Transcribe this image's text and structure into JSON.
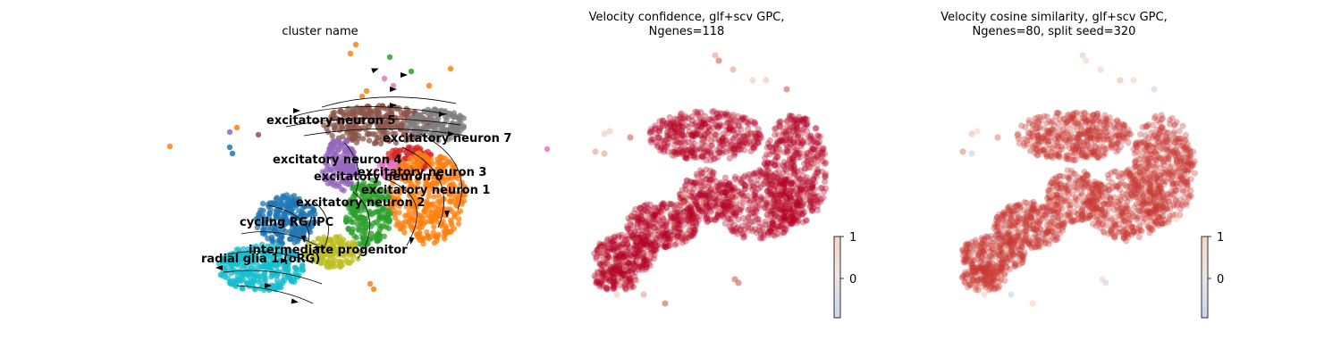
{
  "chart_data": [
    {
      "type": "scatter",
      "title": "cluster name",
      "overlay": "velocity streamlines with arrowheads",
      "clusters": [
        {
          "name": "excitatory neuron 5",
          "color": "#8c564b"
        },
        {
          "name": "excitatory neuron 7",
          "color": "#7f7f7f"
        },
        {
          "name": "excitatory neuron 4",
          "color": "#9467bd"
        },
        {
          "name": "excitatory neuron 3",
          "color": "#d62728"
        },
        {
          "name": "excitatory neuron 6",
          "color": "#e377c2"
        },
        {
          "name": "excitatory neuron 1",
          "color": "#ff7f0e"
        },
        {
          "name": "excitatory neuron 2",
          "color": "#2ca02c"
        },
        {
          "name": "cycling RG/IPC",
          "color": "#1f77b4"
        },
        {
          "name": "intermediate progenitor",
          "color": "#bcbd22"
        },
        {
          "name": "radial glia 1 (oRG)",
          "color": "#17becf"
        }
      ]
    },
    {
      "type": "scatter",
      "title_line1": "Velocity confidence, glf+scv GPC,",
      "title_line2": "Ngenes=118",
      "colormap": "coolwarm",
      "dominant_color": "#b40426",
      "colorbar_ticks": [
        "1",
        "0"
      ]
    },
    {
      "type": "scatter",
      "title_line1": "Velocity cosine similarity, glf+scv GPC,",
      "title_line2": "Ngenes=80, split seed=320",
      "colormap": "coolwarm",
      "dominant_color": "#c83a33",
      "colorbar_ticks": [
        "1",
        "0"
      ]
    }
  ]
}
